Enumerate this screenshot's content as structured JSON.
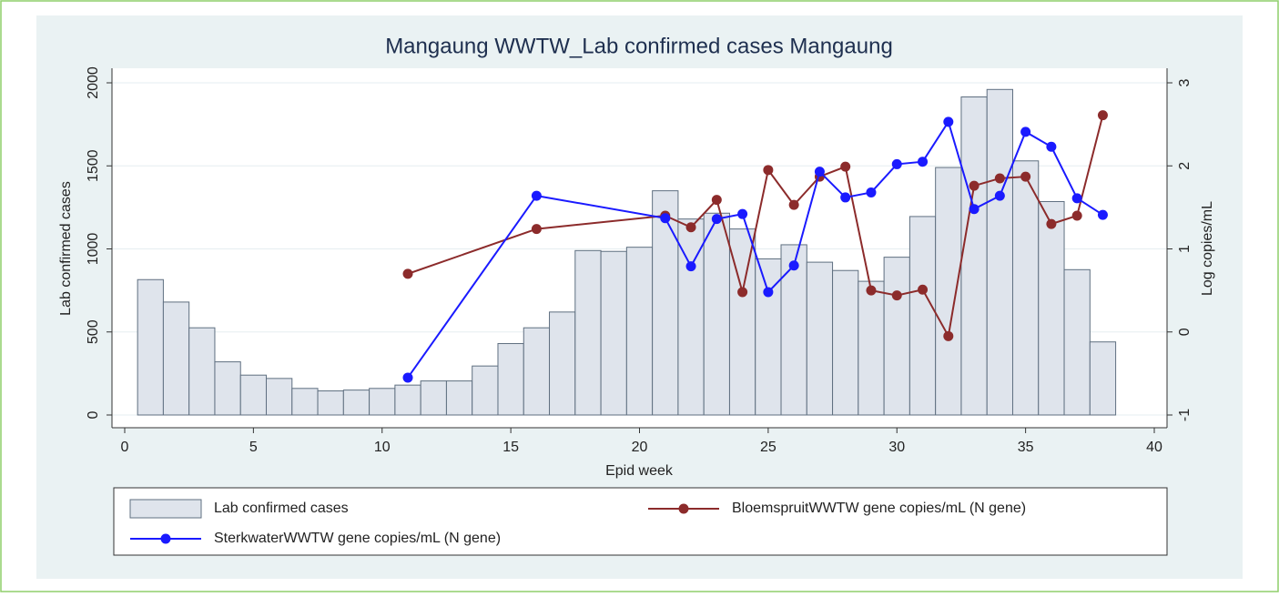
{
  "chart_data": {
    "type": "bar",
    "title": "Mangaung WWTW_Lab confirmed cases Mangaung",
    "x_label": "Epid week",
    "y_label": "Lab confirmed cases",
    "y2_label": "Log copies/mL",
    "xlim": [
      0,
      40
    ],
    "xticks": [
      0,
      5,
      10,
      15,
      20,
      25,
      30,
      35,
      40
    ],
    "ylim": [
      0,
      2000
    ],
    "yticks": [
      0,
      500,
      1000,
      1500,
      2000
    ],
    "y2lim": [
      -1,
      3
    ],
    "y2ticks": [
      -1,
      0,
      1,
      2,
      3
    ],
    "grid": true,
    "legend": "bottom",
    "series": [
      {
        "name": "Lab confirmed cases",
        "type": "bar",
        "color": "#dfe4ec",
        "x": [
          1,
          2,
          3,
          4,
          5,
          6,
          7,
          8,
          9,
          10,
          11,
          12,
          13,
          14,
          15,
          16,
          17,
          18,
          19,
          20,
          21,
          22,
          23,
          24,
          25,
          26,
          27,
          28,
          29,
          30,
          31,
          32,
          33,
          34,
          35,
          36,
          37,
          38
        ],
        "values": [
          815,
          680,
          525,
          320,
          240,
          220,
          160,
          145,
          150,
          160,
          180,
          205,
          205,
          295,
          430,
          525,
          620,
          990,
          985,
          1010,
          1350,
          1180,
          1215,
          1120,
          940,
          1025,
          920,
          870,
          805,
          950,
          1195,
          1490,
          1915,
          1960,
          1530,
          1285,
          875,
          440
        ]
      },
      {
        "name": "BloemspruitWWTW gene copies/mL (N gene)",
        "type": "line",
        "axis": "y2",
        "color": "#8c2b2b",
        "x": [
          11,
          16,
          21,
          22,
          23,
          24,
          25,
          26,
          27,
          28,
          29,
          30,
          31,
          32,
          33,
          34,
          35,
          36,
          37,
          38
        ],
        "values": [
          0.7,
          1.24,
          1.4,
          1.26,
          1.59,
          0.48,
          1.95,
          1.53,
          1.87,
          1.99,
          0.5,
          0.44,
          0.51,
          -0.05,
          1.76,
          1.85,
          1.87,
          1.3,
          1.4,
          2.61
        ]
      },
      {
        "name": "SterkwaterWWTW gene copies/mL (N gene)",
        "type": "line",
        "axis": "y2",
        "color": "#1a1aff",
        "x": [
          11,
          16,
          21,
          22,
          23,
          24,
          25,
          26,
          27,
          28,
          29,
          30,
          31,
          32,
          33,
          34,
          35,
          36,
          37,
          38
        ],
        "values": [
          -0.55,
          1.64,
          1.37,
          0.79,
          1.36,
          1.42,
          0.48,
          0.8,
          1.93,
          1.62,
          1.68,
          2.02,
          2.05,
          2.53,
          1.48,
          1.64,
          2.41,
          2.23,
          1.61,
          1.41
        ]
      }
    ]
  }
}
